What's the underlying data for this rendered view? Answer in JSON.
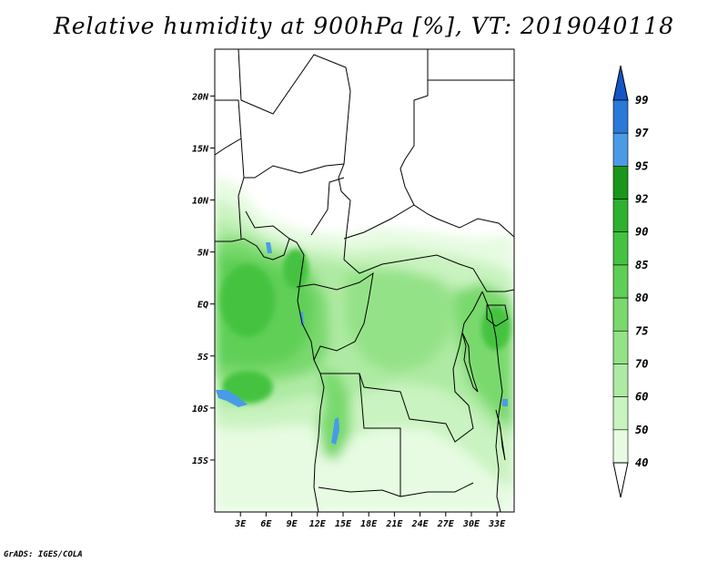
{
  "title": "Relative humidity at 900hPa [%], VT: 2019040118",
  "credit": "GrADS: IGES/COLA",
  "map": {
    "lon_range": [
      0,
      35
    ],
    "lat_range": [
      -20,
      24.5
    ],
    "lat_ticks": [
      {
        "value": 20,
        "label": "20N"
      },
      {
        "value": 15,
        "label": "15N"
      },
      {
        "value": 10,
        "label": "10N"
      },
      {
        "value": 5,
        "label": "5N"
      },
      {
        "value": 0,
        "label": "EQ"
      },
      {
        "value": -5,
        "label": "5S"
      },
      {
        "value": -10,
        "label": "10S"
      },
      {
        "value": -15,
        "label": "15S"
      }
    ],
    "lon_ticks": [
      {
        "value": 3,
        "label": "3E"
      },
      {
        "value": 6,
        "label": "6E"
      },
      {
        "value": 9,
        "label": "9E"
      },
      {
        "value": 12,
        "label": "12E"
      },
      {
        "value": 15,
        "label": "15E"
      },
      {
        "value": 18,
        "label": "18E"
      },
      {
        "value": 21,
        "label": "21E"
      },
      {
        "value": 24,
        "label": "24E"
      },
      {
        "value": 27,
        "label": "27E"
      },
      {
        "value": 30,
        "label": "30E"
      },
      {
        "value": 33,
        "label": "33E"
      }
    ]
  },
  "colorbar": {
    "levels": [
      "40",
      "50",
      "60",
      "70",
      "75",
      "80",
      "85",
      "90",
      "92",
      "95",
      "97",
      "99"
    ],
    "colors": [
      "#ffffff",
      "#e6fbe1",
      "#c9f3c0",
      "#aeeaa3",
      "#94e287",
      "#79d96d",
      "#5ecf56",
      "#44c341",
      "#2eb12e",
      "#1a961a",
      "#4a9be6",
      "#2a78d8",
      "#1357c6"
    ]
  }
}
